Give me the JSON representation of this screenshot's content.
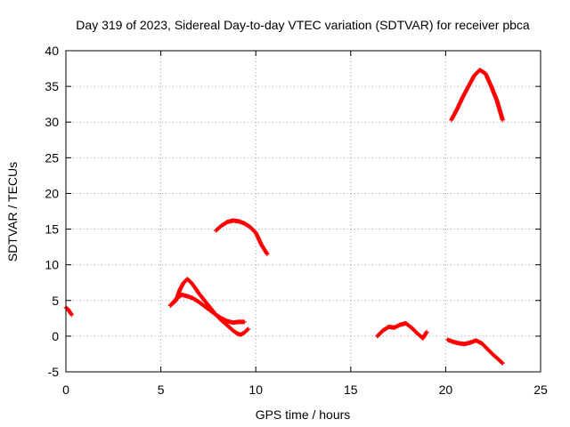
{
  "chart_data": {
    "type": "scatter",
    "title": "Day 319 of 2023, Sidereal Day-to-day VTEC variation (SDTVAR) for receiver pbca",
    "xlabel": "GPS time / hours",
    "ylabel": "SDTVAR / TECUs",
    "xlim": [
      0,
      25
    ],
    "ylim": [
      -5,
      40
    ],
    "xticks": [
      0,
      5,
      10,
      15,
      20,
      25
    ],
    "yticks": [
      -5,
      0,
      5,
      10,
      15,
      20,
      25,
      30,
      35,
      40
    ],
    "grid": true,
    "marker_color": "#ff0000",
    "series": [
      {
        "name": "segment-1",
        "x": [
          0.0,
          0.1,
          0.2,
          0.3
        ],
        "y": [
          4.0,
          3.8,
          3.4,
          3.0
        ]
      },
      {
        "name": "segment-2",
        "x": [
          5.5,
          5.8,
          6.0,
          6.2,
          6.4,
          6.6,
          6.8,
          7.0,
          7.3,
          7.6,
          7.9,
          8.2,
          8.5,
          8.8,
          9.0,
          9.2,
          9.4,
          9.6
        ],
        "y": [
          4.3,
          5.0,
          6.5,
          7.5,
          8.0,
          7.5,
          6.8,
          6.0,
          5.0,
          4.0,
          3.0,
          2.2,
          1.5,
          0.8,
          0.4,
          0.2,
          0.5,
          1.0
        ]
      },
      {
        "name": "segment-3",
        "x": [
          5.5,
          5.8,
          6.1,
          6.4,
          6.7,
          7.0,
          7.3,
          7.6,
          7.9,
          8.2,
          8.5,
          8.8,
          9.1,
          9.4
        ],
        "y": [
          4.3,
          5.2,
          5.8,
          5.6,
          5.3,
          4.8,
          4.2,
          3.6,
          3.0,
          2.5,
          2.1,
          1.9,
          2.0,
          2.0
        ]
      },
      {
        "name": "segment-4",
        "x": [
          7.9,
          8.2,
          8.5,
          8.8,
          9.1,
          9.4,
          9.7,
          10.0,
          10.3,
          10.6
        ],
        "y": [
          14.8,
          15.5,
          16.0,
          16.2,
          16.1,
          15.8,
          15.3,
          14.5,
          12.8,
          11.5
        ]
      },
      {
        "name": "segment-5",
        "x": [
          16.4,
          16.7,
          17.0,
          17.3,
          17.6,
          17.9,
          18.2,
          18.5,
          18.8,
          19.0
        ],
        "y": [
          0.0,
          0.8,
          1.3,
          1.2,
          1.6,
          1.8,
          1.2,
          0.4,
          -0.3,
          0.6
        ]
      },
      {
        "name": "segment-6",
        "x": [
          20.1,
          20.4,
          20.7,
          21.0,
          21.3,
          21.6,
          21.9,
          22.2,
          22.5,
          22.8,
          23.0
        ],
        "y": [
          -0.5,
          -0.8,
          -1.0,
          -1.1,
          -0.9,
          -0.6,
          -1.0,
          -1.8,
          -2.6,
          -3.3,
          -3.8
        ]
      },
      {
        "name": "segment-7",
        "x": [
          20.3,
          20.6,
          20.9,
          21.2,
          21.5,
          21.8,
          22.1,
          22.4,
          22.7,
          23.0
        ],
        "y": [
          30.3,
          31.8,
          33.5,
          35.0,
          36.5,
          37.3,
          36.8,
          35.0,
          33.0,
          30.3
        ]
      }
    ]
  }
}
